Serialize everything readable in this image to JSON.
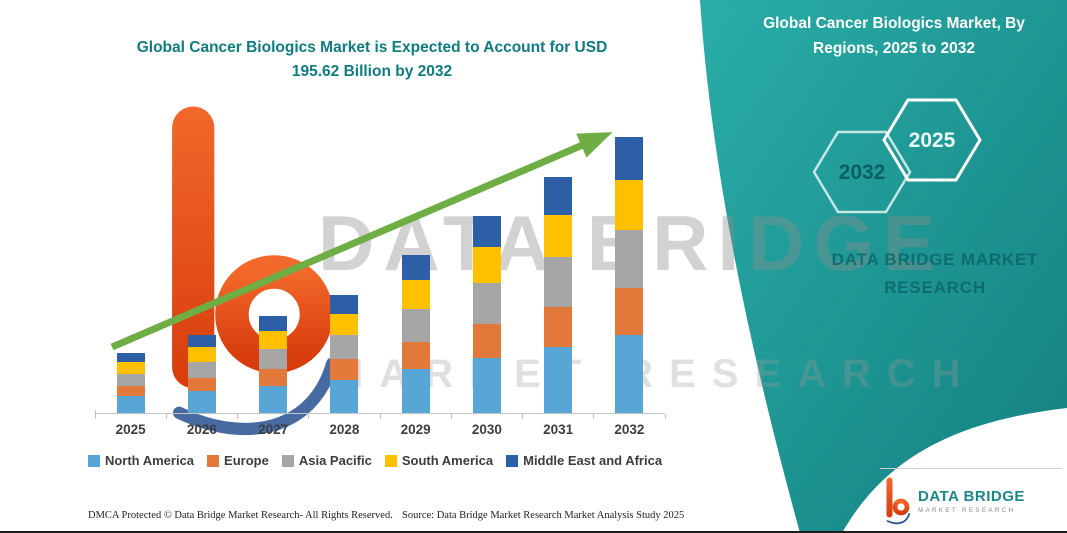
{
  "page": {
    "title_line1": "Global Cancer Biologics Market is Expected to Account for USD",
    "title_line2": "195.62 Billion by 2032",
    "watermark_line1": "DATA BRIDGE",
    "watermark_line2": "MARKET RESEARCH",
    "footer_left": "DMCA Protected © Data Bridge Market Research-  All Rights Reserved.",
    "footer_source": "Source: Data Bridge Market Research  Market Analysis Study 2025"
  },
  "side_panel": {
    "title": "Global Cancer Biologics Market, By Regions, 2025 to 2032",
    "hexagon_left_label": "2032",
    "hexagon_right_label": "2025",
    "brand_line1": "DATA BRIDGE MARKET",
    "brand_line2": "RESEARCH",
    "background_color": "#1d9d9b"
  },
  "footer_logo": {
    "name_line1": "DATA BRIDGE",
    "name_line2": "MARKET RESEARCH"
  },
  "colors": {
    "title_teal": "#0e7c80",
    "trend_arrow_green": "#6fae44",
    "logo_orange": "#e8501f",
    "logo_blue": "#27518f"
  },
  "chart_data": {
    "type": "bar",
    "stacked": true,
    "title": "Global Cancer Biologics Market is Expected to Account for USD 195.62 Billion by 2032",
    "unit": "USD Billion",
    "categories": [
      "2025",
      "2026",
      "2027",
      "2028",
      "2029",
      "2030",
      "2031",
      "2032"
    ],
    "series": [
      {
        "name": "North America",
        "color": "#58a6d6",
        "values": [
          12.0,
          15.5,
          19.5,
          23.5,
          31.5,
          39.0,
          47.0,
          55.0
        ]
      },
      {
        "name": "Europe",
        "color": "#e2793a",
        "values": [
          7.0,
          9.5,
          11.5,
          14.5,
          19.0,
          24.0,
          28.5,
          33.5
        ]
      },
      {
        "name": "Asia Pacific",
        "color": "#a6a6a6",
        "values": [
          9.0,
          11.5,
          14.5,
          17.5,
          23.5,
          29.5,
          35.0,
          41.0
        ]
      },
      {
        "name": "South America",
        "color": "#ffc000",
        "values": [
          8.0,
          10.0,
          12.5,
          15.0,
          20.0,
          25.0,
          30.0,
          35.5
        ]
      },
      {
        "name": "Middle East and Africa",
        "color": "#2d5fa6",
        "values": [
          6.5,
          8.5,
          11.0,
          13.5,
          18.0,
          22.5,
          26.5,
          30.62
        ]
      }
    ],
    "totals_note": "2032 total = 195.62 USD Billion",
    "ylim": [
      0,
      200
    ],
    "grid": false,
    "legend_position": "bottom",
    "trend_arrow": true
  }
}
